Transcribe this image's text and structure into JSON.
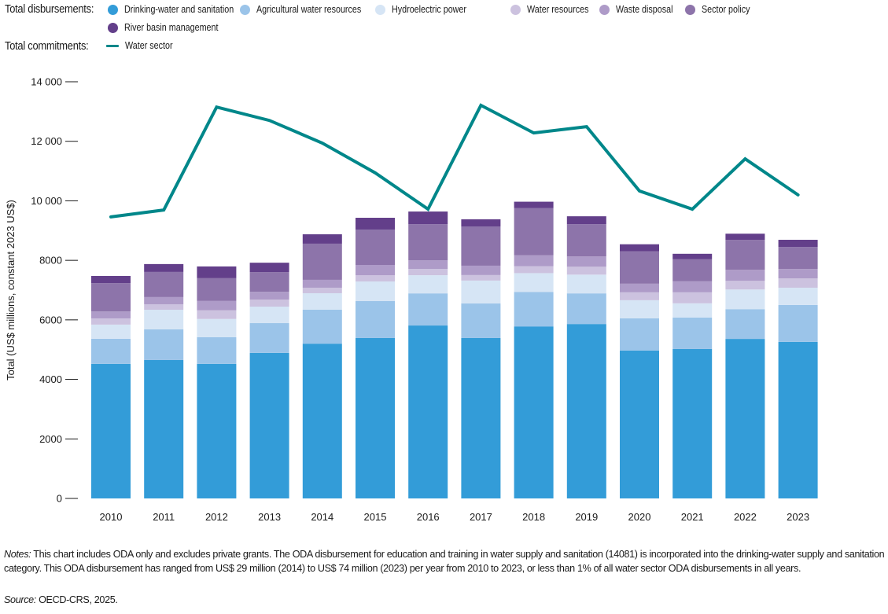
{
  "legend": {
    "disbursements_title": "Total disbursements:",
    "commitments_title": "Total commitments:",
    "items": [
      {
        "label": "Drinking-water and sanitation",
        "color": "#339CD8"
      },
      {
        "label": "Agricultural water resources",
        "color": "#9BC4E9"
      },
      {
        "label": "Hydroelectric power",
        "color": "#D6E5F5"
      },
      {
        "label": "Water resources",
        "color": "#CCC2DF"
      },
      {
        "label": "Waste disposal",
        "color": "#AE9BC8"
      },
      {
        "label": "Sector policy",
        "color": "#8D74AA"
      },
      {
        "label": "River basin management",
        "color": "#633F8A"
      }
    ],
    "line_item": {
      "label": "Water sector",
      "color": "#00878A"
    }
  },
  "notes": {
    "notes_label": "Notes:",
    "notes_text": " This chart includes ODA only and excludes private grants. The ODA disbursement for education and training in water supply and sanitation (14081) is incorporated into the drinking-water supply and sanitation category. This ODA disbursement has ranged from US$ 29 million (2014) to US$ 74 million (2023) per year from 2010 to 2023, or less than 1% of all water sector ODA disbursements in all years.",
    "source_label": "Source:",
    "source_text": " OECD-CRS, 2025."
  },
  "chart_data": {
    "type": "bar",
    "stacked": true,
    "title": "",
    "xlabel": "",
    "ylabel": "Total (US$ millions, constant 2023 US$)",
    "ylim": [
      0,
      14000
    ],
    "yticks": [
      0,
      2000,
      4000,
      6000,
      8000,
      10000,
      12000,
      14000
    ],
    "ytick_labels": [
      "0",
      "2000",
      "4000",
      "6000",
      "8000",
      "10 000",
      "12 000",
      "14 000"
    ],
    "grid": false,
    "legend_position": "top",
    "categories": [
      "2010",
      "2011",
      "2012",
      "2013",
      "2014",
      "2015",
      "2016",
      "2017",
      "2018",
      "2019",
      "2020",
      "2021",
      "2022",
      "2023"
    ],
    "series": [
      {
        "name": "Drinking-water and sanitation",
        "color": "#339CD8",
        "values": [
          4520,
          4650,
          4520,
          4890,
          5200,
          5390,
          5810,
          5390,
          5780,
          5860,
          4970,
          5020,
          5360,
          5260
        ]
      },
      {
        "name": "Agricultural water resources",
        "color": "#9BC4E9",
        "values": [
          845,
          1030,
          900,
          1000,
          1140,
          1240,
          1080,
          1160,
          1160,
          1030,
          1080,
          1060,
          1000,
          1240
        ]
      },
      {
        "name": "Hydroelectric power",
        "color": "#D6E5F5",
        "values": [
          475,
          660,
          610,
          555,
          555,
          660,
          610,
          770,
          630,
          630,
          610,
          475,
          660,
          580
        ]
      },
      {
        "name": "Water resources",
        "color": "#CCC2DF",
        "values": [
          210,
          185,
          290,
          235,
          185,
          210,
          210,
          185,
          235,
          265,
          265,
          370,
          290,
          315
        ]
      },
      {
        "name": "Waste disposal",
        "color": "#AE9BC8",
        "values": [
          235,
          240,
          315,
          265,
          265,
          345,
          290,
          315,
          370,
          345,
          290,
          370,
          370,
          315
        ]
      },
      {
        "name": "Sector policy",
        "color": "#8D74AA",
        "values": [
          950,
          845,
          765,
          660,
          1215,
          1190,
          1215,
          1320,
          1585,
          1085,
          1085,
          740,
          1005,
          740
        ]
      },
      {
        "name": "River basin management",
        "color": "#633F8A",
        "values": [
          240,
          265,
          395,
          315,
          315,
          395,
          425,
          240,
          210,
          265,
          240,
          185,
          210,
          240
        ]
      }
    ],
    "line_series": {
      "name": "Water sector (Total commitments)",
      "color": "#00878A",
      "values": [
        9460,
        9690,
        13150,
        12700,
        11940,
        10940,
        9720,
        13210,
        12280,
        12490,
        10330,
        9720,
        11410,
        10200
      ]
    }
  }
}
